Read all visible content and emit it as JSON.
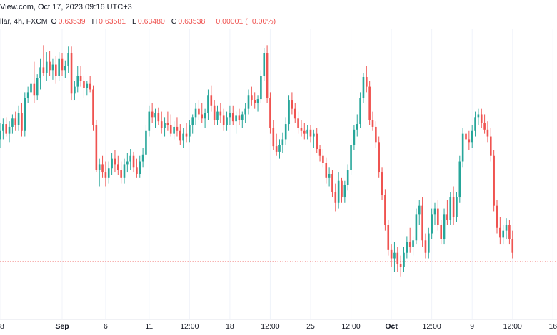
{
  "header": {
    "source_text": "View.com, Oct 17, 2023 09:16 UTC+3",
    "symbol_text": "llar, 4h, FXCM"
  },
  "ohlc": {
    "o_label": "O",
    "o_value": "0.63539",
    "h_label": "H",
    "h_value": "0.63581",
    "l_label": "L",
    "l_value": "0.63480",
    "c_label": "C",
    "c_value": "0.63538",
    "change": "−0.00001 (−0.00%)"
  },
  "colors": {
    "up": "#26a69a",
    "down": "#ef5350",
    "price_line": "#ef5350",
    "axis_text": "#131722",
    "grid": "#f0f3fa"
  },
  "chart_data": {
    "type": "candlestick",
    "timeframe": "4h",
    "ylim": [
      0.6312,
      0.6522
    ],
    "current_price": 0.63538,
    "x_ticks": [
      {
        "label": "8",
        "index": 0,
        "major": false
      },
      {
        "label": "Sep",
        "index": 20,
        "major": true
      },
      {
        "label": "6",
        "index": 34,
        "major": false
      },
      {
        "label": "11",
        "index": 48,
        "major": false
      },
      {
        "label": "12:00",
        "index": 61,
        "major": false
      },
      {
        "label": "18",
        "index": 74,
        "major": false
      },
      {
        "label": "12:00",
        "index": 87,
        "major": false
      },
      {
        "label": "25",
        "index": 100,
        "major": false
      },
      {
        "label": "12:00",
        "index": 113,
        "major": false
      },
      {
        "label": "Oct",
        "index": 126,
        "major": true
      },
      {
        "label": "12:00",
        "index": 139,
        "major": false
      },
      {
        "label": "9",
        "index": 152,
        "major": false
      },
      {
        "label": "12:00",
        "index": 165,
        "major": false
      },
      {
        "label": "16",
        "index": 178,
        "major": false
      }
    ],
    "candles": [
      [
        0.6442,
        0.6454,
        0.6436,
        0.6448
      ],
      [
        0.6448,
        0.6457,
        0.6442,
        0.6453
      ],
      [
        0.6453,
        0.6458,
        0.6444,
        0.6446
      ],
      [
        0.6446,
        0.6455,
        0.644,
        0.6451
      ],
      [
        0.6451,
        0.646,
        0.6446,
        0.6457
      ],
      [
        0.6457,
        0.6462,
        0.6448,
        0.6452
      ],
      [
        0.6452,
        0.6466,
        0.6448,
        0.6461
      ],
      [
        0.6461,
        0.6468,
        0.6444,
        0.6448
      ],
      [
        0.6448,
        0.6476,
        0.6444,
        0.6472
      ],
      [
        0.6472,
        0.648,
        0.6468,
        0.6476
      ],
      [
        0.6476,
        0.6485,
        0.647,
        0.6482
      ],
      [
        0.6482,
        0.6498,
        0.6468,
        0.6474
      ],
      [
        0.6474,
        0.6489,
        0.647,
        0.6486
      ],
      [
        0.6486,
        0.65,
        0.6478,
        0.6494
      ],
      [
        0.6494,
        0.651,
        0.6488,
        0.649
      ],
      [
        0.649,
        0.6505,
        0.6484,
        0.6498
      ],
      [
        0.6498,
        0.6506,
        0.6488,
        0.6492
      ],
      [
        0.6492,
        0.65,
        0.6485,
        0.6496
      ],
      [
        0.6496,
        0.6502,
        0.6482,
        0.6488
      ],
      [
        0.6488,
        0.6505,
        0.6484,
        0.65
      ],
      [
        0.65,
        0.6504,
        0.6488,
        0.6492
      ],
      [
        0.6492,
        0.6499,
        0.6486,
        0.6495
      ],
      [
        0.6495,
        0.6509,
        0.649,
        0.6504
      ],
      [
        0.6504,
        0.6509,
        0.647,
        0.6475
      ],
      [
        0.6475,
        0.6484,
        0.647,
        0.648
      ],
      [
        0.648,
        0.6495,
        0.6476,
        0.6488
      ],
      [
        0.6488,
        0.6495,
        0.648,
        0.6484
      ],
      [
        0.6484,
        0.6488,
        0.6472,
        0.6479
      ],
      [
        0.6479,
        0.6484,
        0.6474,
        0.6482
      ],
      [
        0.6482,
        0.6488,
        0.6476,
        0.6478
      ],
      [
        0.6478,
        0.6481,
        0.6448,
        0.6452
      ],
      [
        0.6452,
        0.6456,
        0.6418,
        0.642
      ],
      [
        0.642,
        0.6428,
        0.6408,
        0.6424
      ],
      [
        0.6424,
        0.643,
        0.6414,
        0.6418
      ],
      [
        0.6418,
        0.6426,
        0.6408,
        0.6414
      ],
      [
        0.6414,
        0.6426,
        0.641,
        0.6421
      ],
      [
        0.6421,
        0.6432,
        0.6416,
        0.6428
      ],
      [
        0.6428,
        0.6434,
        0.6418,
        0.6424
      ],
      [
        0.6424,
        0.643,
        0.6416,
        0.642
      ],
      [
        0.642,
        0.6426,
        0.641,
        0.6414
      ],
      [
        0.6414,
        0.6428,
        0.641,
        0.6424
      ],
      [
        0.6424,
        0.6432,
        0.6418,
        0.6426
      ],
      [
        0.6426,
        0.6435,
        0.642,
        0.643
      ],
      [
        0.643,
        0.6433,
        0.6418,
        0.6422
      ],
      [
        0.6422,
        0.6428,
        0.6414,
        0.6417
      ],
      [
        0.6417,
        0.643,
        0.6414,
        0.6426
      ],
      [
        0.6426,
        0.6436,
        0.6422,
        0.6431
      ],
      [
        0.6431,
        0.6452,
        0.6428,
        0.6448
      ],
      [
        0.6448,
        0.6466,
        0.6444,
        0.6462
      ],
      [
        0.6462,
        0.6468,
        0.6454,
        0.6458
      ],
      [
        0.6458,
        0.6464,
        0.645,
        0.6461
      ],
      [
        0.6461,
        0.6465,
        0.6452,
        0.6455
      ],
      [
        0.6455,
        0.6462,
        0.6446,
        0.645
      ],
      [
        0.645,
        0.6458,
        0.6444,
        0.6454
      ],
      [
        0.6454,
        0.6462,
        0.6448,
        0.6452
      ],
      [
        0.6452,
        0.646,
        0.6444,
        0.6446
      ],
      [
        0.6446,
        0.6455,
        0.6442,
        0.6451
      ],
      [
        0.6451,
        0.6458,
        0.6444,
        0.6448
      ],
      [
        0.6448,
        0.6453,
        0.6438,
        0.6441
      ],
      [
        0.6441,
        0.645,
        0.6436,
        0.6446
      ],
      [
        0.6446,
        0.6454,
        0.644,
        0.6444
      ],
      [
        0.6444,
        0.6456,
        0.644,
        0.6452
      ],
      [
        0.6452,
        0.646,
        0.6446,
        0.6458
      ],
      [
        0.6458,
        0.6468,
        0.6452,
        0.6464
      ],
      [
        0.6464,
        0.647,
        0.6456,
        0.646
      ],
      [
        0.646,
        0.6468,
        0.6454,
        0.6457
      ],
      [
        0.6457,
        0.6464,
        0.645,
        0.6461
      ],
      [
        0.6461,
        0.6478,
        0.6456,
        0.6474
      ],
      [
        0.6474,
        0.6481,
        0.6462,
        0.6466
      ],
      [
        0.6466,
        0.647,
        0.6452,
        0.6456
      ],
      [
        0.6456,
        0.6466,
        0.6452,
        0.6462
      ],
      [
        0.6462,
        0.6468,
        0.6454,
        0.6459
      ],
      [
        0.6459,
        0.6464,
        0.6448,
        0.6452
      ],
      [
        0.6452,
        0.6462,
        0.6448,
        0.6458
      ],
      [
        0.6458,
        0.6466,
        0.6452,
        0.6461
      ],
      [
        0.6461,
        0.6466,
        0.6452,
        0.6455
      ],
      [
        0.6455,
        0.6462,
        0.6446,
        0.6459
      ],
      [
        0.6459,
        0.6464,
        0.6452,
        0.6456
      ],
      [
        0.6456,
        0.6462,
        0.645,
        0.646
      ],
      [
        0.646,
        0.6468,
        0.6454,
        0.6464
      ],
      [
        0.6464,
        0.6478,
        0.646,
        0.6474
      ],
      [
        0.6474,
        0.648,
        0.6466,
        0.647
      ],
      [
        0.647,
        0.6476,
        0.6464,
        0.6468
      ],
      [
        0.6468,
        0.6474,
        0.6462,
        0.6471
      ],
      [
        0.6471,
        0.6492,
        0.6468,
        0.6488
      ],
      [
        0.6488,
        0.6508,
        0.6484,
        0.6504
      ],
      [
        0.6504,
        0.651,
        0.6468,
        0.6472
      ],
      [
        0.6472,
        0.6476,
        0.6446,
        0.645
      ],
      [
        0.645,
        0.6456,
        0.6434,
        0.6437
      ],
      [
        0.6437,
        0.6446,
        0.643,
        0.6433
      ],
      [
        0.6433,
        0.6442,
        0.6428,
        0.6438
      ],
      [
        0.6438,
        0.6447,
        0.6432,
        0.6442
      ],
      [
        0.6442,
        0.6458,
        0.6438,
        0.6453
      ],
      [
        0.6453,
        0.6474,
        0.6448,
        0.647
      ],
      [
        0.647,
        0.6476,
        0.646,
        0.6464
      ],
      [
        0.6464,
        0.6468,
        0.6454,
        0.6457
      ],
      [
        0.6457,
        0.6462,
        0.6446,
        0.645
      ],
      [
        0.645,
        0.6456,
        0.6444,
        0.6448
      ],
      [
        0.6448,
        0.6454,
        0.6442,
        0.6446
      ],
      [
        0.6446,
        0.6452,
        0.6442,
        0.6449
      ],
      [
        0.6449,
        0.6452,
        0.644,
        0.6444
      ],
      [
        0.6444,
        0.6449,
        0.6436,
        0.6446
      ],
      [
        0.6446,
        0.645,
        0.6432,
        0.6435
      ],
      [
        0.6435,
        0.6438,
        0.6426,
        0.643
      ],
      [
        0.643,
        0.6435,
        0.6422,
        0.6425
      ],
      [
        0.6425,
        0.6429,
        0.641,
        0.6414
      ],
      [
        0.6414,
        0.6422,
        0.6408,
        0.6417
      ],
      [
        0.6417,
        0.642,
        0.64,
        0.6404
      ],
      [
        0.6404,
        0.641,
        0.639,
        0.6396
      ],
      [
        0.6396,
        0.6418,
        0.6392,
        0.6412
      ],
      [
        0.6412,
        0.6414,
        0.6396,
        0.64
      ],
      [
        0.64,
        0.6412,
        0.6396,
        0.6409
      ],
      [
        0.6409,
        0.6424,
        0.6405,
        0.642
      ],
      [
        0.642,
        0.6442,
        0.6416,
        0.6438
      ],
      [
        0.6438,
        0.6452,
        0.6434,
        0.6449
      ],
      [
        0.6449,
        0.646,
        0.6444,
        0.6453
      ],
      [
        0.6453,
        0.6476,
        0.645,
        0.6472
      ],
      [
        0.6472,
        0.649,
        0.6468,
        0.6487
      ],
      [
        0.6487,
        0.6495,
        0.6476,
        0.648
      ],
      [
        0.648,
        0.6484,
        0.6452,
        0.6456
      ],
      [
        0.6456,
        0.6462,
        0.6448,
        0.6451
      ],
      [
        0.6451,
        0.6455,
        0.6436,
        0.644
      ],
      [
        0.644,
        0.6444,
        0.6414,
        0.6418
      ],
      [
        0.6418,
        0.6422,
        0.6398,
        0.6402
      ],
      [
        0.6402,
        0.6406,
        0.6376,
        0.638
      ],
      [
        0.638,
        0.6384,
        0.6358,
        0.6362
      ],
      [
        0.6362,
        0.6366,
        0.635,
        0.6356
      ],
      [
        0.6356,
        0.6368,
        0.6346,
        0.636
      ],
      [
        0.636,
        0.6364,
        0.6346,
        0.6352
      ],
      [
        0.6352,
        0.6358,
        0.6343,
        0.635
      ],
      [
        0.635,
        0.6364,
        0.6346,
        0.636
      ],
      [
        0.636,
        0.6372,
        0.6356,
        0.6368
      ],
      [
        0.6368,
        0.6378,
        0.636,
        0.6364
      ],
      [
        0.6364,
        0.6372,
        0.6358,
        0.6369
      ],
      [
        0.6369,
        0.6392,
        0.6366,
        0.6388
      ],
      [
        0.6388,
        0.6398,
        0.638,
        0.6394
      ],
      [
        0.6394,
        0.64,
        0.6364,
        0.6369
      ],
      [
        0.6369,
        0.6374,
        0.6356,
        0.636
      ],
      [
        0.636,
        0.6378,
        0.6356,
        0.6374
      ],
      [
        0.6374,
        0.6392,
        0.637,
        0.6388
      ],
      [
        0.6388,
        0.6396,
        0.638,
        0.6392
      ],
      [
        0.6392,
        0.6398,
        0.6376,
        0.638
      ],
      [
        0.638,
        0.6384,
        0.6366,
        0.637
      ],
      [
        0.637,
        0.6392,
        0.6366,
        0.6388
      ],
      [
        0.6388,
        0.6398,
        0.638,
        0.6384
      ],
      [
        0.6384,
        0.6404,
        0.638,
        0.64
      ],
      [
        0.64,
        0.6408,
        0.638,
        0.6386
      ],
      [
        0.6386,
        0.6404,
        0.6382,
        0.64
      ],
      [
        0.64,
        0.643,
        0.6396,
        0.6426
      ],
      [
        0.6426,
        0.645,
        0.6422,
        0.6446
      ],
      [
        0.6446,
        0.6456,
        0.6438,
        0.6442
      ],
      [
        0.6442,
        0.6448,
        0.6434,
        0.644
      ],
      [
        0.644,
        0.6452,
        0.6436,
        0.6448
      ],
      [
        0.6448,
        0.6462,
        0.6444,
        0.6458
      ],
      [
        0.6458,
        0.6464,
        0.6452,
        0.646
      ],
      [
        0.646,
        0.6464,
        0.645,
        0.6454
      ],
      [
        0.6454,
        0.646,
        0.6446,
        0.6449
      ],
      [
        0.6449,
        0.6455,
        0.644,
        0.6444
      ],
      [
        0.6444,
        0.645,
        0.6426,
        0.643
      ],
      [
        0.643,
        0.6434,
        0.639,
        0.6394
      ],
      [
        0.6394,
        0.6398,
        0.6374,
        0.6378
      ],
      [
        0.6378,
        0.6386,
        0.6366,
        0.6371
      ],
      [
        0.6371,
        0.638,
        0.6366,
        0.6376
      ],
      [
        0.6376,
        0.6385,
        0.637,
        0.638
      ],
      [
        0.638,
        0.6384,
        0.6366,
        0.637
      ],
      [
        0.637,
        0.6376,
        0.6356,
        0.636
      ]
    ]
  }
}
